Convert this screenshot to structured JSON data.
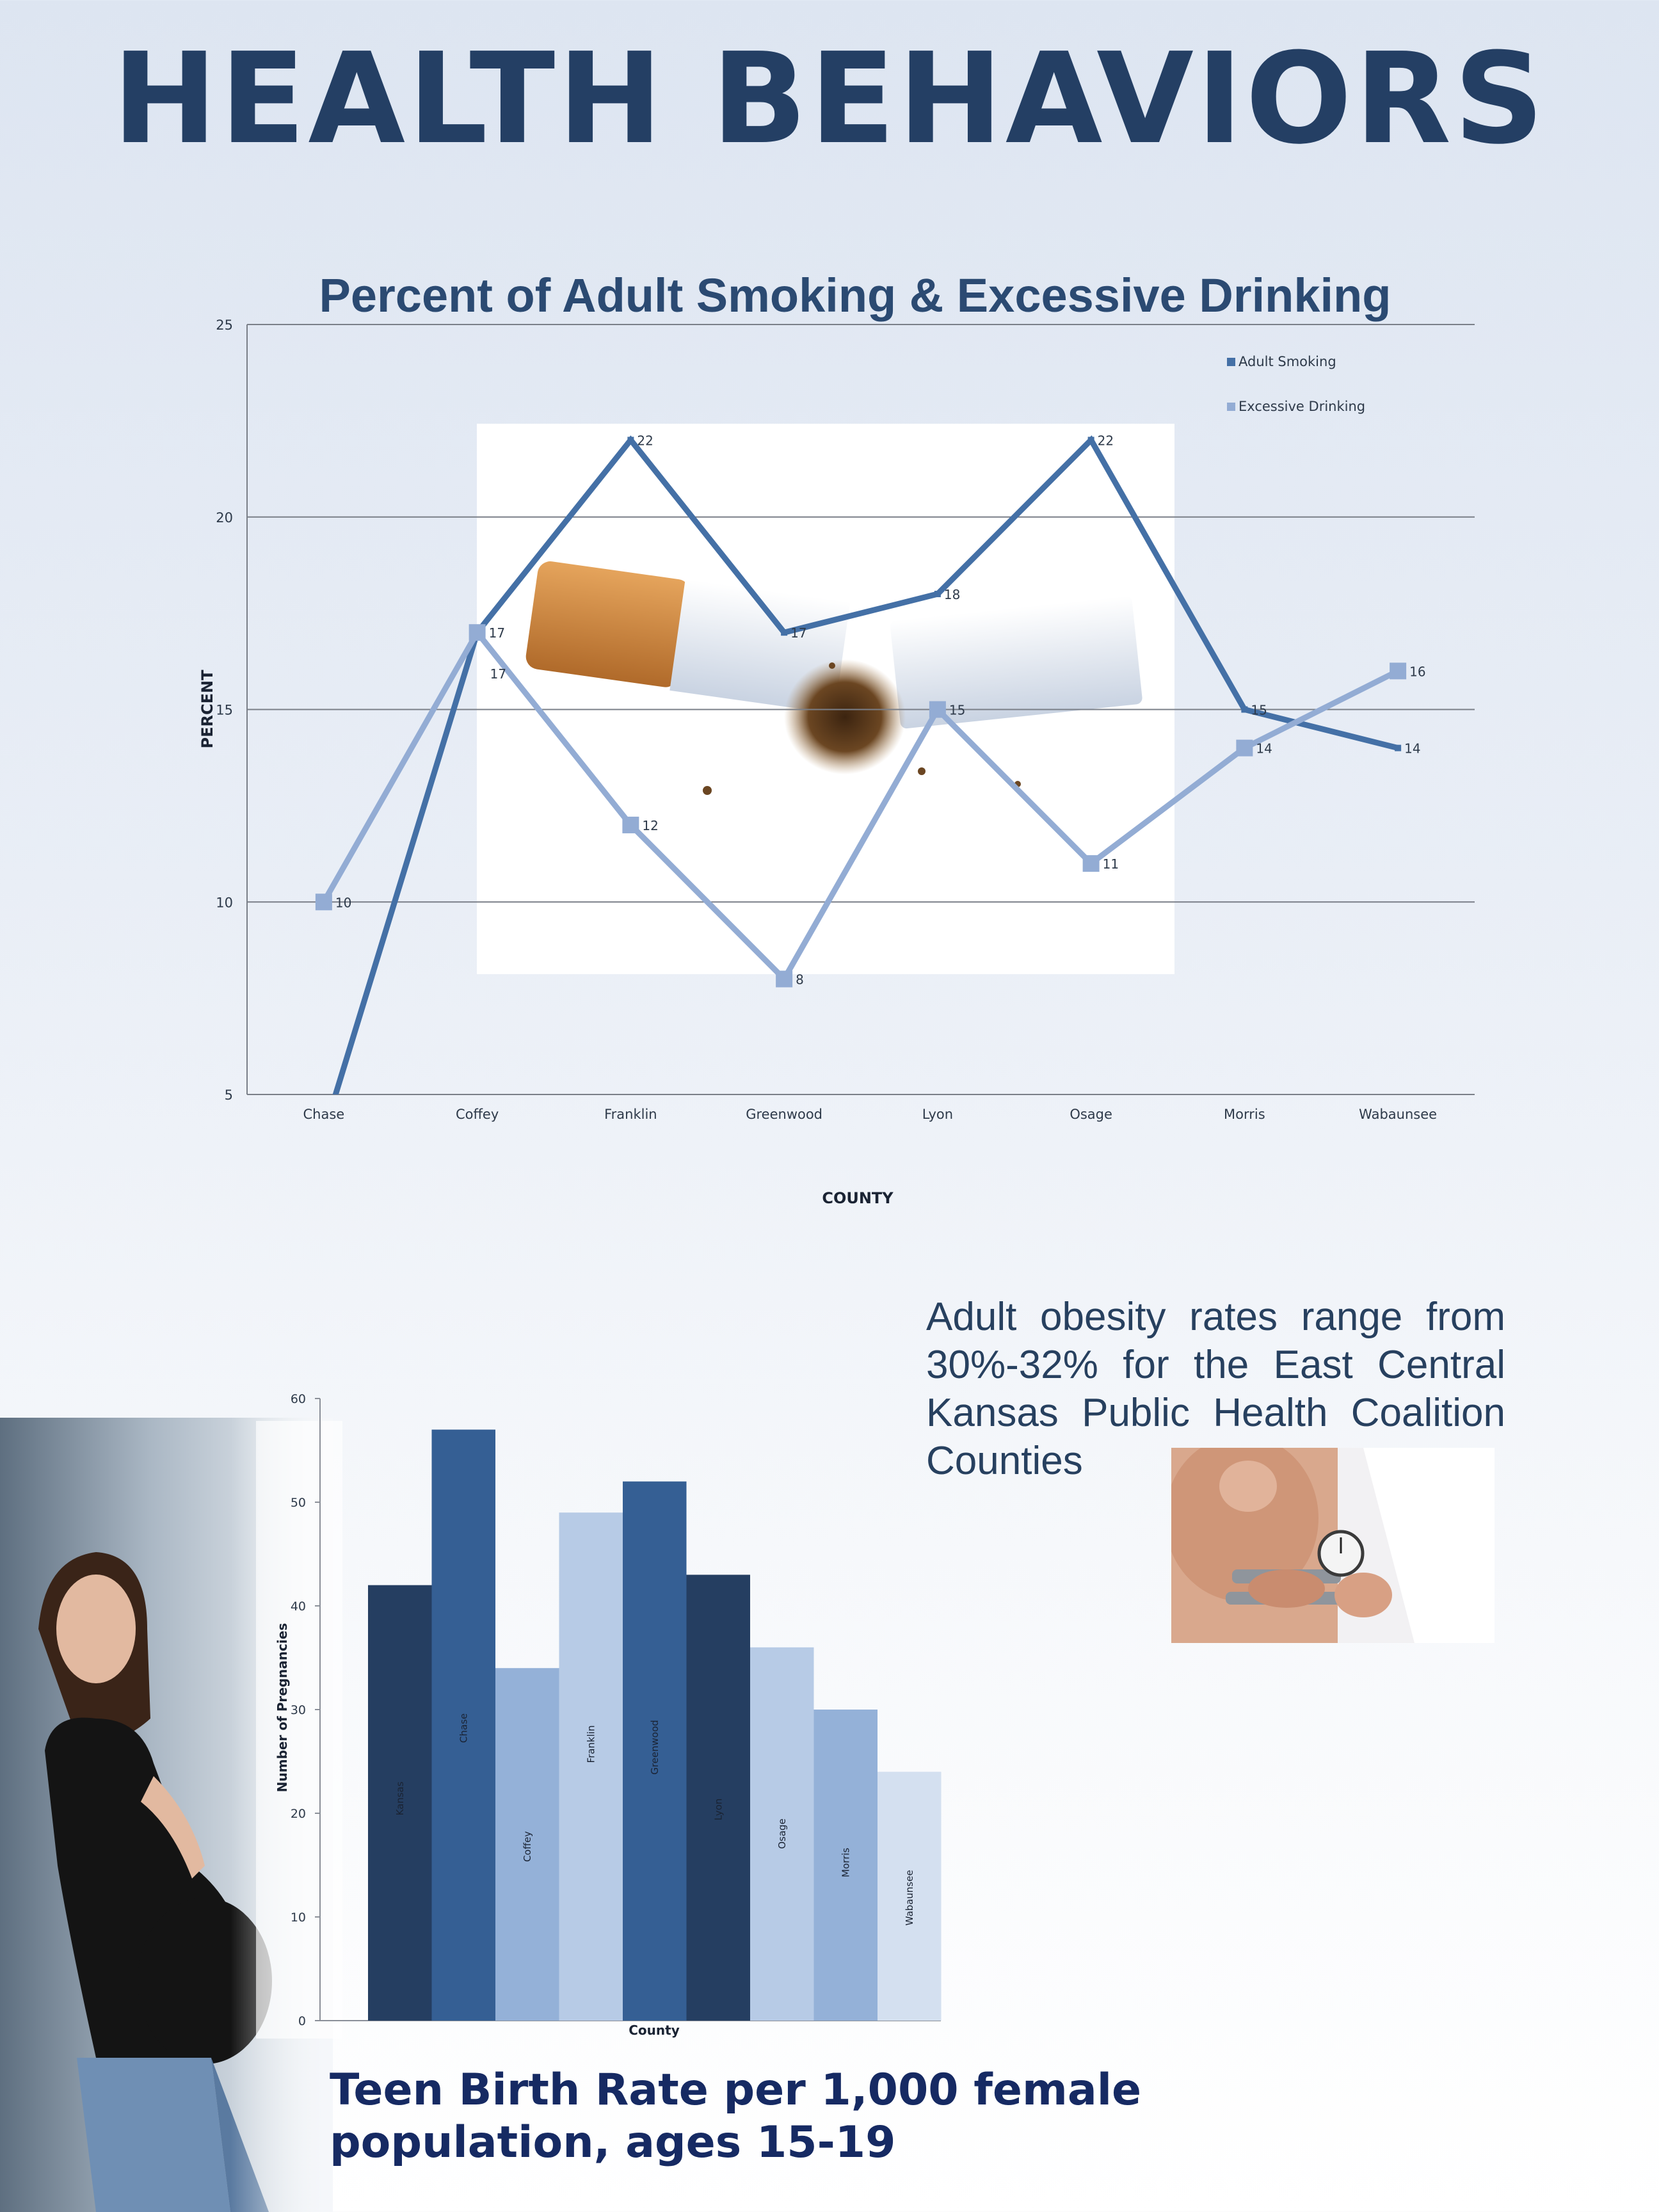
{
  "page": {
    "title": "HEALTH BEHAVIORS",
    "obesity_text": "Adult obesity rates range from 30%-32% for the East Central Kansas Public Health Coalition Counties",
    "teen_caption_line1": "Teen Birth Rate per 1,000 female",
    "teen_caption_line2": "population, ages 15-19"
  },
  "colors": {
    "smoking": "#4470a6",
    "drinking": "#93acd4",
    "bar_dark": "#253e61",
    "bar_mid": "#355f94",
    "bar_light": "#94b1d8",
    "bar_pale": "#b7cbe6",
    "bar_palest": "#d4e0f0",
    "title": "#243f64"
  },
  "icons": [
    "cigarette-photo",
    "pregnant-woman-photo",
    "skinfold-caliper-photo"
  ],
  "chart_data": [
    {
      "type": "line",
      "title": "Percent of Adult Smoking & Excessive Drinking",
      "xlabel": "COUNTY",
      "ylabel": "PERCENT",
      "categories": [
        "Chase",
        "Coffey",
        "Franklin",
        "Greenwood",
        "Lyon",
        "Osage",
        "Morris",
        "Wabaunsee"
      ],
      "ylim": [
        5,
        25
      ],
      "yticks": [
        5,
        10,
        15,
        20,
        25
      ],
      "grid": true,
      "legend": "top-right",
      "series": [
        {
          "name": "Adult Smoking",
          "values": [
            4,
            17,
            22,
            17,
            18,
            22,
            15,
            14
          ],
          "labels": [
            "",
            "17",
            "22",
            "17",
            "18",
            "22",
            "15",
            "14"
          ]
        },
        {
          "name": "Excessive Drinking",
          "values": [
            10,
            17,
            12,
            8,
            15,
            11,
            14,
            16
          ],
          "labels": [
            "10",
            "17",
            "12",
            "8",
            "15",
            "11",
            "14",
            "16"
          ]
        }
      ]
    },
    {
      "type": "bar",
      "title": "",
      "xlabel": "County",
      "ylabel": "Number of Pregnancies",
      "categories": [
        "Kansas",
        "Chase",
        "Coffey",
        "Franklin",
        "Greenwood",
        "Lyon",
        "Osage",
        "Morris",
        "Wabaunsee"
      ],
      "values": [
        42,
        57,
        34,
        49,
        52,
        43,
        36,
        30,
        24
      ],
      "ylim": [
        0,
        60
      ],
      "yticks": [
        0,
        10,
        20,
        30,
        40,
        50,
        60
      ],
      "grid": false,
      "legend": "none"
    }
  ]
}
